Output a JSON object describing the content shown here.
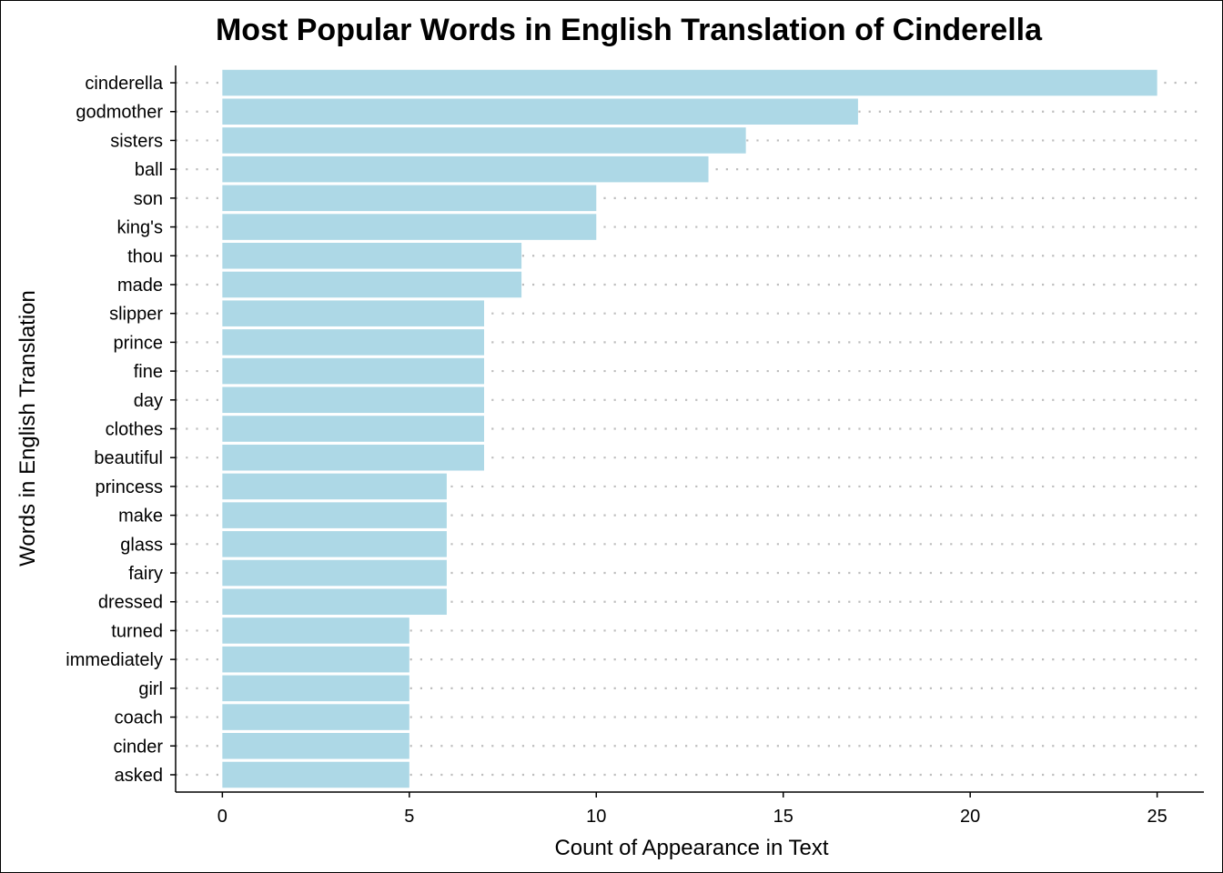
{
  "chart_data": {
    "type": "bar",
    "orientation": "horizontal",
    "title": "Most Popular Words in English Translation of Cinderella",
    "xlabel": "Count of Appearance in Text",
    "ylabel": "Words in English Translation",
    "categories": [
      "cinderella",
      "godmother",
      "sisters",
      "ball",
      "son",
      "king's",
      "thou",
      "made",
      "slipper",
      "prince",
      "fine",
      "day",
      "clothes",
      "beautiful",
      "princess",
      "make",
      "glass",
      "fairy",
      "dressed",
      "turned",
      "immediately",
      "girl",
      "coach",
      "cinder",
      "asked"
    ],
    "values": [
      25,
      17,
      14,
      13,
      10,
      10,
      8,
      8,
      7,
      7,
      7,
      7,
      7,
      7,
      6,
      6,
      6,
      6,
      6,
      5,
      5,
      5,
      5,
      5,
      5
    ],
    "xlim": [
      -1.25,
      26.25
    ],
    "xticks": [
      0,
      5,
      10,
      15,
      20,
      25
    ],
    "xtick_labels": [
      "0",
      "5",
      "10",
      "15",
      "20",
      "25"
    ],
    "grid": "horizontal dotted",
    "legend": "none",
    "colors": {
      "bar": "#ADD8E6",
      "grid": "#BEBEBE",
      "axis": "#000000"
    }
  }
}
